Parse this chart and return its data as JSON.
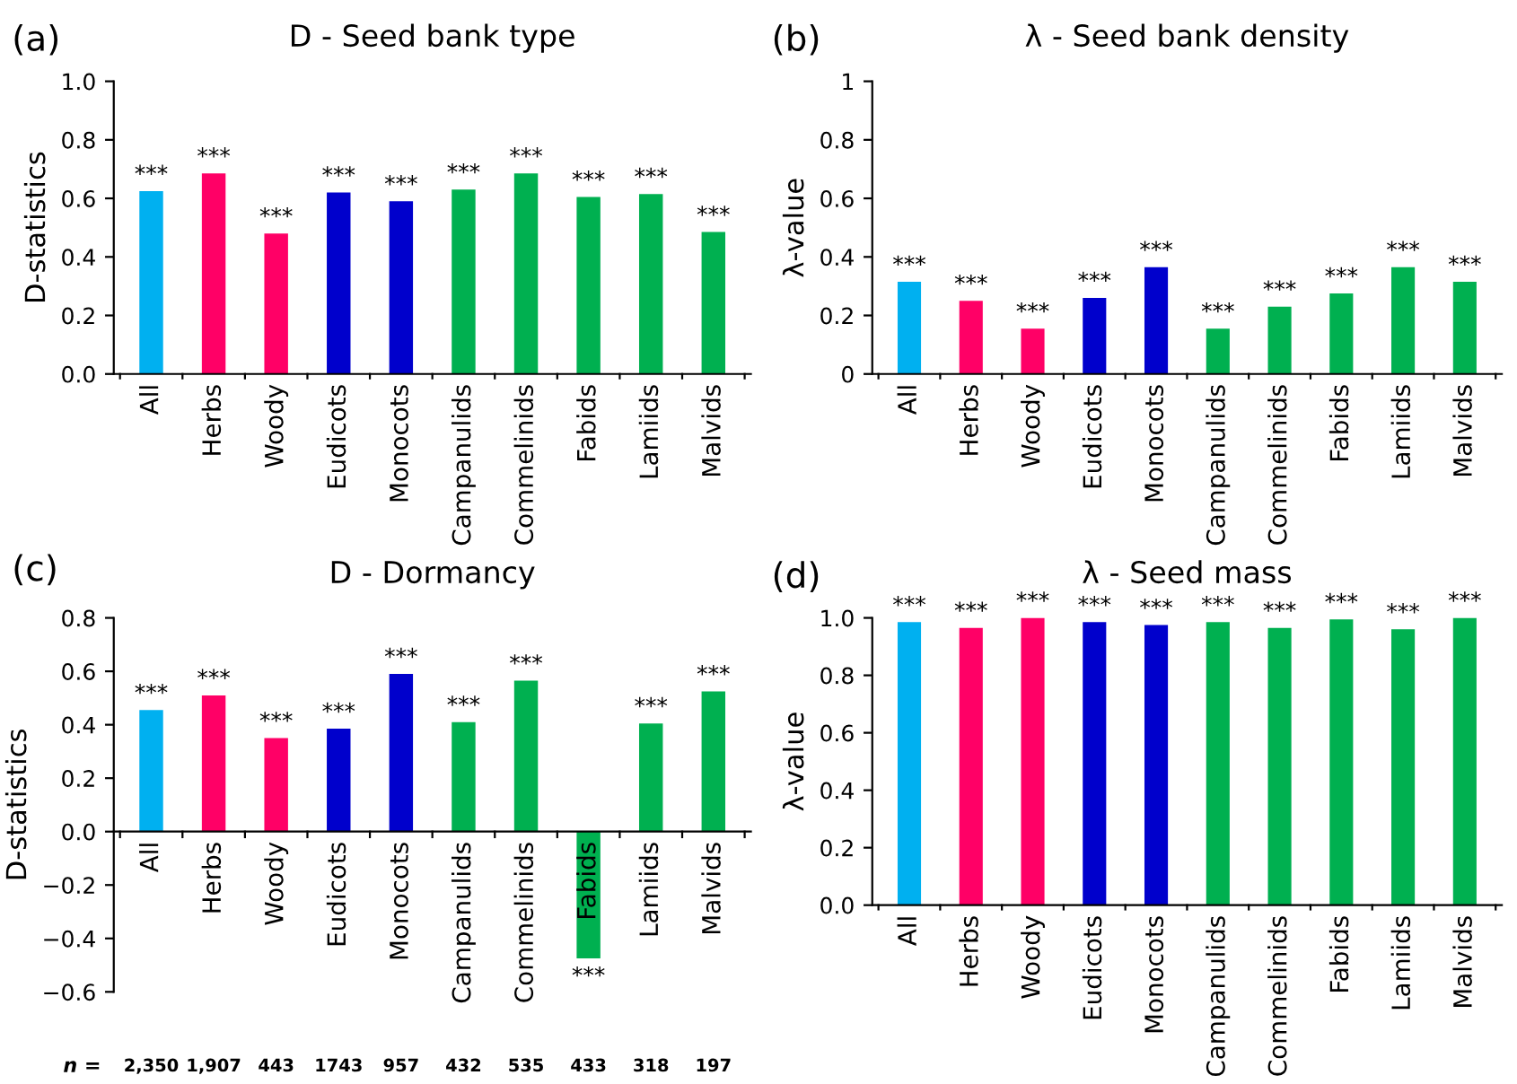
{
  "chart_data": [
    {
      "type": "bar",
      "title": "D - Seed bank type",
      "ylabel": "D-statistics",
      "annotations": [
        "(a)"
      ],
      "categories": [
        "All",
        "Herbs",
        "Woody",
        "Eudicots",
        "Monocots",
        "Campanulids",
        "Commelinids",
        "Fabids",
        "Lamiids",
        "Malvids"
      ],
      "values": [
        0.625,
        0.685,
        0.48,
        0.62,
        0.59,
        0.63,
        0.685,
        0.605,
        0.615,
        0.485
      ],
      "colors": [
        "#00b0f0",
        "#ff0066",
        "#ff0066",
        "#0000cc",
        "#0000cc",
        "#00b050",
        "#00b050",
        "#00b050",
        "#00b050",
        "#00b050"
      ],
      "value_labels": [
        "***",
        "***",
        "***",
        "***",
        "***",
        "***",
        "***",
        "***",
        "***",
        "***"
      ],
      "ylim": [
        0,
        1.0
      ],
      "yticks": [
        {
          "value": 0,
          "label": "0.0"
        },
        0.2,
        0.4,
        0.6,
        0.8,
        {
          "value": 1.0,
          "label": "1.0"
        }
      ]
    },
    {
      "type": "bar",
      "title": "λ - Seed bank density",
      "ylabel": "λ-value",
      "annotations": [
        "(b)"
      ],
      "categories": [
        "All",
        "Herbs",
        "Woody",
        "Eudicots",
        "Monocots",
        "Campanulids",
        "Commelinids",
        "Fabids",
        "Lamiids",
        "Malvids"
      ],
      "values": [
        0.315,
        0.25,
        0.155,
        0.26,
        0.365,
        0.155,
        0.23,
        0.275,
        0.365,
        0.315
      ],
      "colors": [
        "#00b0f0",
        "#ff0066",
        "#ff0066",
        "#0000cc",
        "#0000cc",
        "#00b050",
        "#00b050",
        "#00b050",
        "#00b050",
        "#00b050"
      ],
      "value_labels": [
        "***",
        "***",
        "***",
        "***",
        "***",
        "***",
        "***",
        "***",
        "***",
        "***"
      ],
      "ylim": [
        0,
        1
      ],
      "yticks": [
        0,
        0.2,
        0.4,
        0.6,
        0.8,
        1
      ]
    },
    {
      "type": "bar",
      "title": "D - Dormancy",
      "ylabel": "D-statistics",
      "annotations": [
        "(c)",
        "n =",
        "2,350",
        "1,907",
        "443",
        "1743",
        "957",
        "432",
        "535",
        "433",
        "318",
        "197"
      ],
      "categories": [
        "All",
        "Herbs",
        "Woody",
        "Eudicots",
        "Monocots",
        "Campanulids",
        "Commelinids",
        "Fabids",
        "Lamiids",
        "Malvids"
      ],
      "values": [
        0.455,
        0.51,
        0.35,
        0.385,
        0.59,
        0.41,
        0.565,
        -0.475,
        0.405,
        0.525
      ],
      "colors": [
        "#00b0f0",
        "#ff0066",
        "#ff0066",
        "#0000cc",
        "#0000cc",
        "#00b050",
        "#00b050",
        "#00b050",
        "#00b050",
        "#00b050"
      ],
      "value_labels": [
        "***",
        "***",
        "***",
        "***",
        "***",
        "***",
        "***",
        "***",
        "***",
        "***"
      ],
      "ylim": [
        -0.6,
        0.8
      ],
      "yticks": [
        {
          "value": -0.6,
          "label": "−0.6"
        },
        {
          "value": -0.4,
          "label": "−0.4"
        },
        {
          "value": -0.2,
          "label": "−0.2"
        },
        {
          "value": 0,
          "label": "0.0"
        },
        0.2,
        0.4,
        0.6,
        0.8
      ]
    },
    {
      "type": "bar",
      "title": "λ - Seed mass",
      "ylabel": "λ-value",
      "annotations": [
        "(d)"
      ],
      "categories": [
        "All",
        "Herbs",
        "Woody",
        "Eudicots",
        "Monocots",
        "Campanulids",
        "Commelinids",
        "Fabids",
        "Lamiids",
        "Malvids"
      ],
      "values": [
        0.985,
        0.965,
        1.0,
        0.985,
        0.975,
        0.985,
        0.965,
        0.995,
        0.96,
        1.0
      ],
      "colors": [
        "#00b0f0",
        "#ff0066",
        "#ff0066",
        "#0000cc",
        "#0000cc",
        "#00b050",
        "#00b050",
        "#00b050",
        "#00b050",
        "#00b050"
      ],
      "value_labels": [
        "***",
        "***",
        "***",
        "***",
        "***",
        "***",
        "***",
        "***",
        "***",
        "***"
      ],
      "ylim": [
        0,
        1.0
      ],
      "yticks": [
        {
          "value": 0,
          "label": "0.0"
        },
        0.2,
        0.4,
        0.6,
        0.8,
        {
          "value": 1.0,
          "label": "1.0"
        }
      ]
    }
  ]
}
